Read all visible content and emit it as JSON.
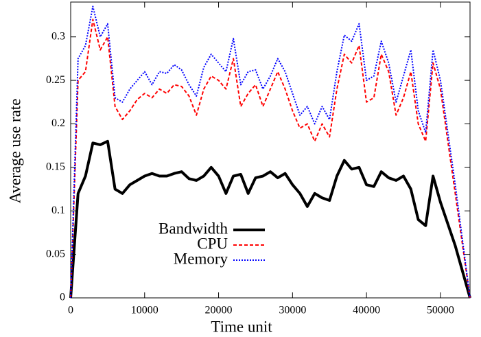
{
  "chart_data": {
    "type": "line",
    "xlabel": "Time unit",
    "ylabel": "Average use rate",
    "x": [
      0,
      1000,
      2000,
      3000,
      4000,
      5000,
      6000,
      7000,
      8000,
      9000,
      10000,
      11000,
      12000,
      13000,
      14000,
      15000,
      16000,
      17000,
      18000,
      19000,
      20000,
      21000,
      22000,
      23000,
      24000,
      25000,
      26000,
      27000,
      28000,
      29000,
      30000,
      31000,
      32000,
      33000,
      34000,
      35000,
      36000,
      37000,
      38000,
      39000,
      40000,
      41000,
      42000,
      43000,
      44000,
      45000,
      46000,
      47000,
      48000,
      49000,
      50000,
      51000,
      52000,
      53000,
      54000
    ],
    "series": [
      {
        "name": "Bandwidth",
        "color": "#000000",
        "style": "solid",
        "values": [
          0,
          0.12,
          0.14,
          0.178,
          0.176,
          0.18,
          0.125,
          0.12,
          0.13,
          0.135,
          0.14,
          0.143,
          0.14,
          0.14,
          0.143,
          0.145,
          0.137,
          0.135,
          0.14,
          0.15,
          0.14,
          0.12,
          0.14,
          0.142,
          0.12,
          0.138,
          0.14,
          0.145,
          0.138,
          0.143,
          0.13,
          0.12,
          0.105,
          0.12,
          0.115,
          0.112,
          0.14,
          0.158,
          0.148,
          0.15,
          0.13,
          0.128,
          0.145,
          0.138,
          0.135,
          0.14,
          0.125,
          0.09,
          0.083,
          0.14,
          0.11,
          0.085,
          0.06,
          0.03,
          0
        ]
      },
      {
        "name": "CPU",
        "color": "#ff0000",
        "style": "dashed",
        "values": [
          0,
          0.25,
          0.26,
          0.32,
          0.285,
          0.3,
          0.22,
          0.205,
          0.215,
          0.228,
          0.235,
          0.23,
          0.24,
          0.235,
          0.245,
          0.243,
          0.232,
          0.21,
          0.24,
          0.255,
          0.25,
          0.24,
          0.275,
          0.22,
          0.235,
          0.245,
          0.22,
          0.24,
          0.26,
          0.24,
          0.215,
          0.195,
          0.2,
          0.18,
          0.2,
          0.185,
          0.24,
          0.28,
          0.27,
          0.29,
          0.225,
          0.23,
          0.28,
          0.26,
          0.21,
          0.23,
          0.26,
          0.2,
          0.18,
          0.27,
          0.24,
          0.18,
          0.12,
          0.06,
          0
        ]
      },
      {
        "name": "Memory",
        "color": "#0000ff",
        "style": "dotted",
        "values": [
          0,
          0.275,
          0.29,
          0.335,
          0.3,
          0.315,
          0.23,
          0.225,
          0.24,
          0.25,
          0.26,
          0.245,
          0.26,
          0.258,
          0.268,
          0.262,
          0.245,
          0.232,
          0.265,
          0.28,
          0.27,
          0.26,
          0.298,
          0.245,
          0.26,
          0.262,
          0.24,
          0.255,
          0.275,
          0.26,
          0.235,
          0.21,
          0.22,
          0.2,
          0.22,
          0.205,
          0.26,
          0.302,
          0.295,
          0.315,
          0.25,
          0.255,
          0.295,
          0.27,
          0.225,
          0.255,
          0.285,
          0.215,
          0.19,
          0.285,
          0.25,
          0.19,
          0.13,
          0.065,
          0
        ]
      }
    ],
    "xlim": [
      0,
      54000
    ],
    "xticks": [
      0,
      10000,
      20000,
      30000,
      40000,
      50000
    ],
    "ylim": [
      0,
      0.34
    ],
    "yticks": [
      0,
      0.05,
      0.1,
      0.15,
      0.2,
      0.25,
      0.3
    ],
    "legend": "bottom-center"
  }
}
